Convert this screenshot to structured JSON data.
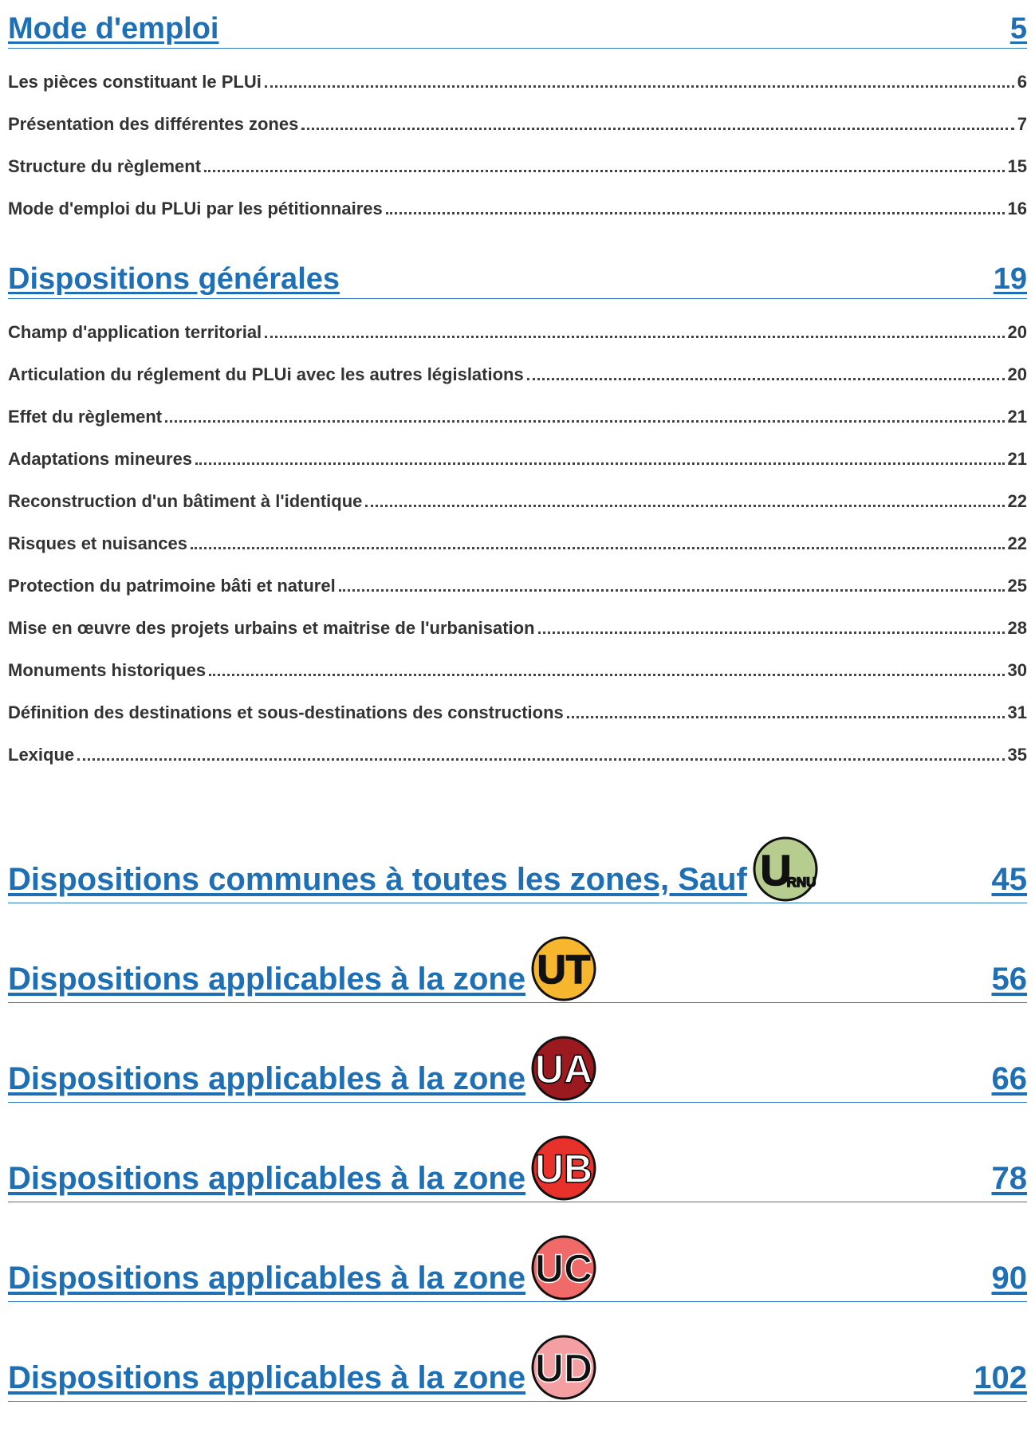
{
  "sections": [
    {
      "title": "Mode d'emploi",
      "page": "5",
      "entries": [
        {
          "title": "Les pièces constituant le PLUi",
          "page": "6"
        },
        {
          "title": "Présentation des différentes zones",
          "page": "7"
        },
        {
          "title": "Structure du règlement",
          "page": "15"
        },
        {
          "title": "Mode d'emploi du PLUi par les pétitionnaires",
          "page": "16"
        }
      ]
    },
    {
      "title": "Dispositions générales",
      "page": "19",
      "entries": [
        {
          "title": "Champ d'application territorial",
          "page": "20"
        },
        {
          "title": "Articulation du réglement du PLUi avec les autres législations",
          "page": "20"
        },
        {
          "title": "Effet du règlement",
          "page": "21"
        },
        {
          "title": "Adaptations mineures",
          "page": "21"
        },
        {
          "title": "Reconstruction d'un bâtiment à l'identique",
          "page": "22"
        },
        {
          "title": "Risques et nuisances",
          "page": "22"
        },
        {
          "title": "Protection du patrimoine bâti et naturel",
          "page": "25"
        },
        {
          "title": "Mise en œuvre des projets urbains et maitrise de l'urbanisation",
          "page": "28"
        },
        {
          "title": "Monuments historiques",
          "page": "30"
        },
        {
          "title": "Définition des destinations et sous-destinations des constructions",
          "page": "31"
        },
        {
          "title": "Lexique",
          "page": "35"
        }
      ]
    },
    {
      "title": "Dispositions communes à toutes les zones, Sauf",
      "page": "45",
      "badge": {
        "main": "U",
        "sub": "RNU",
        "color": "#b7cc8f"
      }
    },
    {
      "title": "Dispositions applicables à la zone",
      "page": "56",
      "badge": {
        "main": "UT",
        "color": "#f6b62e"
      }
    },
    {
      "title": "Dispositions applicables à la zone",
      "page": "66",
      "badge": {
        "main": "UA",
        "color": "#9b1a20"
      }
    },
    {
      "title": "Dispositions applicables à la zone",
      "page": "78",
      "badge": {
        "main": "UB",
        "color": "#e8312b"
      }
    },
    {
      "title": "Dispositions applicables à la zone",
      "page": "90",
      "badge": {
        "main": "UC",
        "color": "#ef6a69"
      }
    },
    {
      "title": "Dispositions applicables à la zone",
      "page": "102",
      "badge": {
        "main": "UD",
        "color": "#f4a0a2"
      }
    }
  ]
}
